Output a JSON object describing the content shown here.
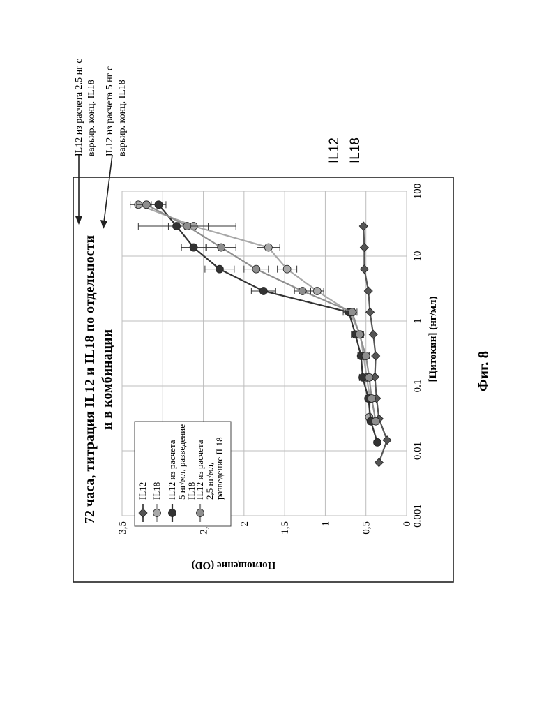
{
  "figure_label": "Фиг. 8",
  "side_labels": {
    "il12": "IL12",
    "il18": "IL18"
  },
  "annotations": [
    {
      "line1": "IL12 из расчета 2.5 нг с",
      "line2": "варьир. конц. IL18"
    },
    {
      "line1": "IL12 из расчета 5 нг с",
      "line2": "варьир. конц. IL18"
    }
  ],
  "chart_data": {
    "type": "line",
    "title_lines": [
      "72 часа, титрация IL12 и IL18 по отдельности",
      "и в комбинации"
    ],
    "xlabel": "[Цитокин] (нг/мл)",
    "ylabel": "Поглощение (OD)",
    "x_scale": "log",
    "xlim": [
      0.001,
      100
    ],
    "ylim": [
      0,
      3.5
    ],
    "x_ticks": [
      0.001,
      0.01,
      0.1,
      1,
      10,
      100
    ],
    "x_tick_labels": [
      "0.001",
      "0.01",
      "0.1",
      "1",
      "10",
      "100"
    ],
    "y_ticks": [
      0,
      0.5,
      1,
      1.5,
      2,
      2.5,
      3,
      3.5
    ],
    "y_tick_labels": [
      "0",
      "0,5",
      "1",
      "1,5",
      "2",
      "2,5",
      "3",
      "3,5"
    ],
    "grid": true,
    "legend_position": "top-left",
    "series": [
      {
        "name": "IL12",
        "color": "#555555",
        "marker": "diamond",
        "points": [
          [
            0.0066,
            0.34
          ],
          [
            0.0146,
            0.24
          ],
          [
            0.0312,
            0.34
          ],
          [
            0.0642,
            0.37
          ],
          [
            0.137,
            0.39
          ],
          [
            0.29,
            0.38
          ],
          [
            0.62,
            0.41
          ],
          [
            1.37,
            0.45
          ],
          [
            2.9,
            0.47
          ],
          [
            6.3,
            0.52
          ],
          [
            13.6,
            0.52
          ],
          [
            29,
            0.53
          ]
        ]
      },
      {
        "name": "IL18",
        "color": "#a8a8a8",
        "marker": "circle",
        "points": [
          [
            0.033,
            0.46
          ],
          [
            0.064,
            0.45
          ],
          [
            0.135,
            0.49
          ],
          [
            0.29,
            0.53
          ],
          [
            0.62,
            0.57
          ],
          [
            1.37,
            0.7
          ],
          [
            2.9,
            1.1
          ],
          [
            6.3,
            1.47
          ],
          [
            13.6,
            1.7
          ],
          [
            29,
            2.62
          ],
          [
            62,
            3.3
          ]
        ],
        "errors": [
          0.03,
          0.03,
          0.03,
          0.03,
          0.04,
          0.06,
          0.08,
          0.12,
          0.14,
          0.18,
          0.1
        ]
      },
      {
        "name": "IL12 из расчета 5 нг/мл, разведение IL18",
        "color": "#333333",
        "marker": "circle",
        "points": [
          [
            0.0135,
            0.36
          ],
          [
            0.0285,
            0.44
          ],
          [
            0.064,
            0.47
          ],
          [
            0.135,
            0.54
          ],
          [
            0.29,
            0.56
          ],
          [
            0.62,
            0.63
          ],
          [
            1.37,
            0.71
          ],
          [
            2.9,
            1.76
          ],
          [
            6.3,
            2.3
          ],
          [
            13.6,
            2.62
          ],
          [
            29,
            2.83
          ],
          [
            62,
            3.05
          ]
        ],
        "errors": [
          0.03,
          0.03,
          0.03,
          0.04,
          0.04,
          0.05,
          0.07,
          0.15,
          0.18,
          0.15,
          0.1,
          0.09
        ]
      },
      {
        "name": "IL12 из расчета 2,5 нг/мл, разведение IL18",
        "color": "#8e8e8e",
        "marker": "circle",
        "points": [
          [
            0.0285,
            0.38
          ],
          [
            0.064,
            0.43
          ],
          [
            0.135,
            0.46
          ],
          [
            0.29,
            0.5
          ],
          [
            0.62,
            0.58
          ],
          [
            1.37,
            0.67
          ],
          [
            2.9,
            1.28
          ],
          [
            6.3,
            1.85
          ],
          [
            13.6,
            2.28
          ],
          [
            29,
            2.7
          ],
          [
            62,
            3.2
          ]
        ],
        "errors": [
          0.03,
          0.03,
          0.03,
          0.04,
          0.05,
          0.06,
          0.1,
          0.15,
          0.18,
          0.6,
          0.12
        ]
      }
    ]
  }
}
